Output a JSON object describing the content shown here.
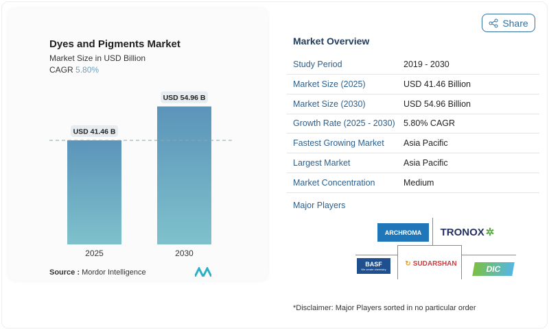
{
  "share_label": "Share",
  "card": {
    "title": "Dyes and Pigments Market",
    "subtitle": "Market Size in USD Billion",
    "cagr_label": "CAGR",
    "cagr_value": "5.80%",
    "source_label": "Source :",
    "source_value": "Mordor Intelligence"
  },
  "chart_data": {
    "type": "bar",
    "categories": [
      "2025",
      "2030"
    ],
    "values": [
      41.46,
      54.96
    ],
    "data_labels": [
      "USD 41.46 B",
      "USD 54.96 B"
    ],
    "ylim": [
      0,
      60
    ],
    "grid": false,
    "reference_line": 41.46,
    "colors": {
      "bar_top": "#5b94b9",
      "bar_bottom": "#7fc1cc"
    }
  },
  "overview": {
    "title": "Market Overview",
    "rows": [
      {
        "k": "Study Period",
        "v": "2019 - 2030"
      },
      {
        "k": "Market Size (2025)",
        "v": "USD 41.46 Billion"
      },
      {
        "k": "Market Size (2030)",
        "v": "USD 54.96 Billion"
      },
      {
        "k": "Growth Rate (2025 - 2030)",
        "v": "5.80% CAGR"
      },
      {
        "k": "Fastest Growing Market",
        "v": "Asia Pacific"
      },
      {
        "k": "Largest Market",
        "v": "Asia Pacific"
      },
      {
        "k": "Market Concentration",
        "v": "Medium"
      }
    ],
    "players_label": "Major Players",
    "players": [
      "ARCHROMA",
      "TRONOX",
      "BASF",
      "SUDARSHAN",
      "DIC"
    ],
    "basf_tagline": "We create chemistry",
    "disclaimer": "*Disclaimer: Major Players sorted in no particular order"
  }
}
